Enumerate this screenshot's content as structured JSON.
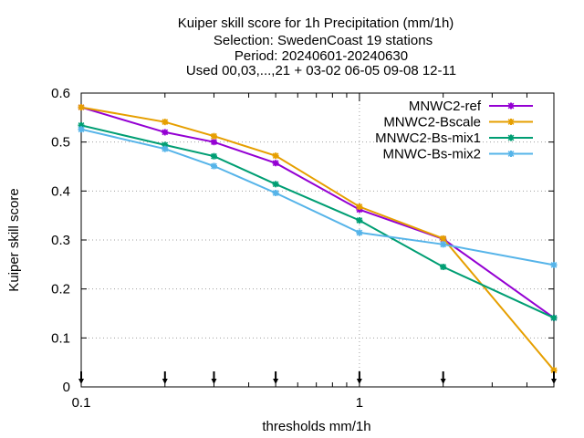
{
  "chart_data": {
    "type": "line",
    "title_lines": [
      "Kuiper skill score  for 1h Precipitation (mm/1h)",
      "Selection: SwedenCoast      19 stations",
      "Period: 20240601-20240630",
      "Used 00,03,...,21 + 03-02 06-05 09-08 12-11"
    ],
    "xlabel": "thresholds mm/1h",
    "ylabel": "Kuiper skill score",
    "x_scale": "log",
    "xlim": [
      0.1,
      5
    ],
    "ylim": [
      0,
      0.6
    ],
    "x_tick_labels": [
      {
        "value": 0.1,
        "label": "0.1"
      },
      {
        "value": 1,
        "label": "1"
      }
    ],
    "y_ticks": [
      {
        "value": 0,
        "label": "0"
      },
      {
        "value": 0.1,
        "label": "0.1"
      },
      {
        "value": 0.2,
        "label": "0.2"
      },
      {
        "value": 0.3,
        "label": "0.3"
      },
      {
        "value": 0.4,
        "label": "0.4"
      },
      {
        "value": 0.5,
        "label": "0.5"
      },
      {
        "value": 0.6,
        "label": "0.6"
      }
    ],
    "grid": true,
    "legend_position": "top-right",
    "x": [
      0.1,
      0.2,
      0.3,
      0.5,
      1,
      2,
      5
    ],
    "series": [
      {
        "name": "MNWC2-ref",
        "color": "#9400d3",
        "values": [
          0.571,
          0.52,
          0.5,
          0.457,
          0.362,
          0.302,
          0.141
        ]
      },
      {
        "name": "MNWC2-Bscale",
        "color": "#e69f00",
        "values": [
          0.571,
          0.541,
          0.512,
          0.472,
          0.368,
          0.303,
          0.034
        ]
      },
      {
        "name": "MNWC2-Bs-mix1",
        "color": "#009e73",
        "values": [
          0.534,
          0.494,
          0.471,
          0.414,
          0.34,
          0.245,
          0.141
        ]
      },
      {
        "name": "MNWC-Bs-mix2",
        "color": "#56b4e9",
        "values": [
          0.526,
          0.486,
          0.451,
          0.396,
          0.315,
          0.291,
          0.249
        ]
      }
    ],
    "observation_markers_x": [
      0.1,
      0.2,
      0.3,
      0.5,
      1,
      2,
      5
    ]
  }
}
